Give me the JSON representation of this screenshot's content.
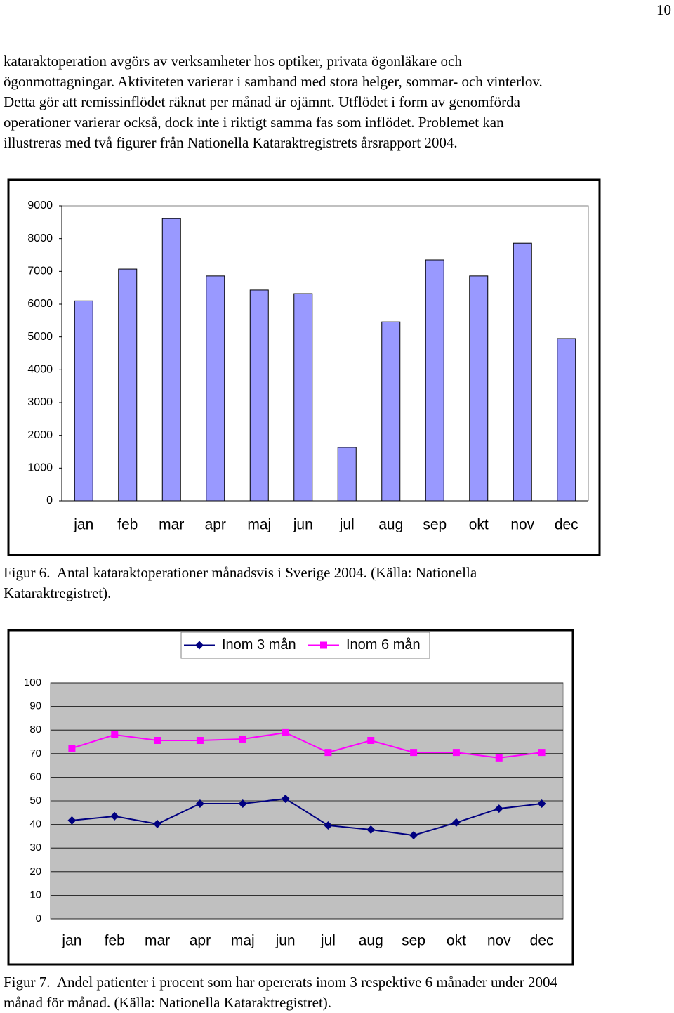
{
  "page_number": "10",
  "paragraph": [
    "kataraktoperation avgörs av verksamheter hos optiker, privata ögonläkare och",
    "ögonmottagningar. Aktiviteten varierar i samband med stora helger, sommar- och vinterlov.",
    "Detta gör att remissinflödet räknat per månad är ojämnt. Utflödet i form av genomförda",
    "operationer varierar också, dock inte i riktigt samma fas som inflödet. Problemet kan",
    "illustreras med två figurer från Nationella Kataraktregistrets årsrapport 2004."
  ],
  "chart_data": [
    {
      "type": "bar",
      "categories": [
        "jan",
        "feb",
        "mar",
        "apr",
        "maj",
        "jun",
        "jul",
        "aug",
        "sep",
        "okt",
        "nov",
        "dec"
      ],
      "values": [
        6100,
        7070,
        8610,
        6860,
        6430,
        6320,
        1630,
        5460,
        7350,
        6860,
        7860,
        4950
      ],
      "color": "#9999ff",
      "ylim": [
        0,
        9000
      ],
      "yticks": [
        0,
        1000,
        2000,
        3000,
        4000,
        5000,
        6000,
        7000,
        8000,
        9000
      ],
      "grid": false
    },
    {
      "type": "line",
      "categories": [
        "jan",
        "feb",
        "mar",
        "apr",
        "maj",
        "jun",
        "jul",
        "aug",
        "sep",
        "okt",
        "nov",
        "dec"
      ],
      "series": [
        {
          "name": "Inom 3 mån",
          "color": "#000080",
          "marker": "diamond",
          "values": [
            41.7,
            43.5,
            40.2,
            48.8,
            48.8,
            50.9,
            39.6,
            37.8,
            35.4,
            40.8,
            46.7,
            48.8
          ]
        },
        {
          "name": "Inom 6 mån",
          "color": "#ff00ff",
          "marker": "square",
          "values": [
            72.3,
            78.0,
            75.6,
            75.6,
            76.2,
            78.9,
            70.5,
            75.6,
            70.5,
            70.5,
            68.2,
            70.5
          ]
        }
      ],
      "ylim": [
        0,
        100
      ],
      "yticks": [
        0,
        10,
        20,
        30,
        40,
        50,
        60,
        70,
        80,
        90,
        100
      ],
      "grid": true,
      "plot_background": "#c0c0c0",
      "legend": "top"
    }
  ],
  "captions": [
    [
      "Figur 6.  Antal kataraktoperationer månadsvis i Sverige 2004. (Källa: Nationella",
      "Kataraktregistret)."
    ],
    [
      "Figur 7.  Andel patienter i procent som har opererats inom 3 respektive 6 månader under 2004",
      "månad för månad. (Källa: Nationella Kataraktregistret)."
    ]
  ]
}
